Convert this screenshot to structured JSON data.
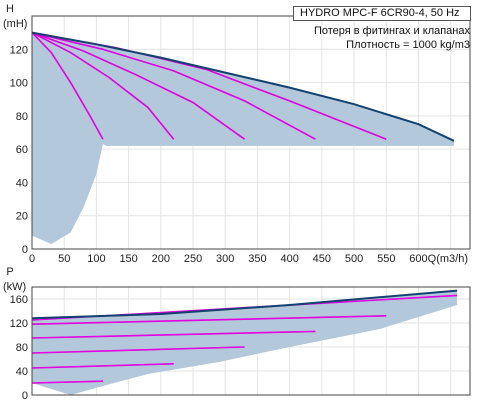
{
  "header": {
    "title": "HYDRO MPC-F 6CR90-4, 50 Hz",
    "note_losses": "Потеря в фитингах и клапанах",
    "note_density": "Плотность = 1000 kg/m3"
  },
  "chart_data": [
    {
      "type": "line",
      "ylabel_symbol": "H",
      "ylabel_unit": "(mH)",
      "xlabel": "Q(m3/h)",
      "xlim": [
        0,
        680
      ],
      "ylim": [
        0,
        140
      ],
      "x_ticks": [
        "0",
        "50",
        "100",
        "150",
        "200",
        "250",
        "300",
        "350",
        "400",
        "450",
        "500",
        "550",
        "600"
      ],
      "y_ticks": [
        "0",
        "20",
        "40",
        "60",
        "80",
        "100",
        "120"
      ],
      "colors": {
        "envelope": "#13426f",
        "fill": "#b3c8da",
        "speed_curve": "#e000e0"
      },
      "envelope": {
        "x": [
          0,
          100,
          200,
          300,
          400,
          500,
          600,
          655
        ],
        "y": [
          130,
          123,
          115,
          106,
          97,
          87,
          75,
          65
        ]
      },
      "speed_curves": [
        {
          "x": [
            0,
            30,
            60,
            90,
            110
          ],
          "y": [
            130,
            118,
            100,
            80,
            66
          ]
        },
        {
          "x": [
            0,
            60,
            120,
            180,
            220
          ],
          "y": [
            130,
            118,
            103,
            85,
            66
          ]
        },
        {
          "x": [
            0,
            80,
            160,
            250,
            330
          ],
          "y": [
            130,
            119,
            105,
            88,
            66
          ]
        },
        {
          "x": [
            0,
            110,
            220,
            330,
            440
          ],
          "y": [
            130,
            120,
            107,
            89,
            66
          ]
        },
        {
          "x": [
            0,
            130,
            270,
            400,
            550
          ],
          "y": [
            130,
            121,
            108,
            89,
            66
          ]
        }
      ],
      "npsh_limit": {
        "x": [
          0,
          30,
          60,
          80,
          100,
          110
        ],
        "y": [
          8,
          3,
          10,
          25,
          45,
          63
        ]
      }
    },
    {
      "type": "line",
      "ylabel_symbol": "P",
      "ylabel_unit": "(kW)",
      "xlim": [
        0,
        680
      ],
      "ylim": [
        0,
        180
      ],
      "y_ticks": [
        "0",
        "40",
        "80",
        "120",
        "160"
      ],
      "colors": {
        "envelope": "#13426f",
        "fill": "#b3c8da",
        "speed_curve": "#e000e0"
      },
      "envelope": {
        "x": [
          0,
          200,
          400,
          660
        ],
        "y": [
          128,
          135,
          150,
          174
        ]
      },
      "power_curves": [
        {
          "x": [
            0,
            110
          ],
          "y": [
            20,
            23
          ]
        },
        {
          "x": [
            0,
            220
          ],
          "y": [
            45,
            52
          ]
        },
        {
          "x": [
            0,
            330
          ],
          "y": [
            70,
            80
          ]
        },
        {
          "x": [
            0,
            440
          ],
          "y": [
            95,
            106
          ]
        },
        {
          "x": [
            0,
            550
          ],
          "y": [
            118,
            132
          ]
        },
        {
          "x": [
            0,
            660
          ],
          "y": [
            125,
            166
          ]
        }
      ]
    }
  ]
}
